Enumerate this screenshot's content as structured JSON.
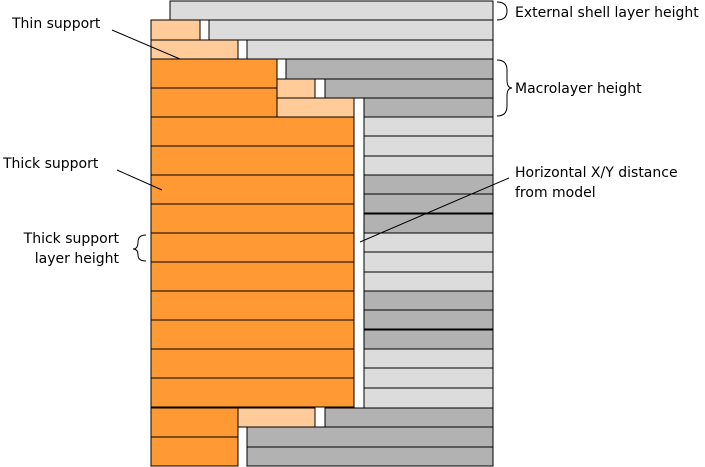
{
  "labels": {
    "thin_support": "Thin support",
    "thick_support": "Thick support",
    "thick_support_layer_height": [
      "Thick support",
      "layer height"
    ],
    "external_shell_layer_height": "External shell layer height",
    "macrolayer_height": "Macrolayer height",
    "horizontal_xy_distance": [
      "Horizontal X/Y distance",
      "from model"
    ]
  },
  "colors": {
    "thick_support": "#ff9933",
    "thin_support": "#ffcc99",
    "shell_light": "#dcdcdc",
    "macrolayer_dark": "#b2b2b2",
    "outline": "#000000",
    "background": "#ffffff"
  }
}
